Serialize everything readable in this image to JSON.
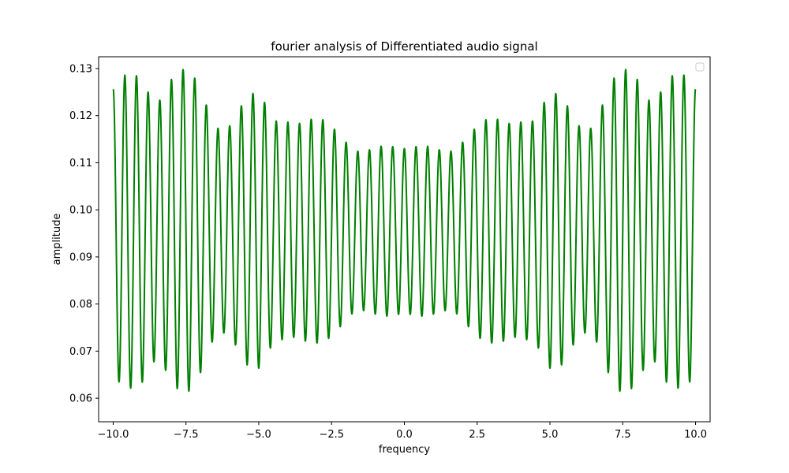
{
  "chart_data": {
    "type": "line",
    "title": "fourier analysis of Differentiated audio signal",
    "xlabel": "frequency",
    "ylabel": "amplitude",
    "xlim": [
      -10.5,
      10.5
    ],
    "ylim": [
      0.055,
      0.1325
    ],
    "xticks": [
      -10.0,
      -7.5,
      -5.0,
      -2.5,
      0.0,
      2.5,
      5.0,
      7.5,
      10.0
    ],
    "xtick_labels": [
      "−10.0",
      "−7.5",
      "−5.0",
      "−2.5",
      "0.0",
      "2.5",
      "5.0",
      "7.5",
      "10.0"
    ],
    "yticks": [
      0.06,
      0.07,
      0.08,
      0.09,
      0.1,
      0.11,
      0.12,
      0.13
    ],
    "ytick_labels": [
      "0.06",
      "0.07",
      "0.08",
      "0.09",
      "0.10",
      "0.11",
      "0.12",
      "0.13"
    ],
    "legend": "top-right (empty)",
    "series": [
      {
        "name": "",
        "color": "#008000",
        "x_range": [
          -10.0,
          10.0
        ],
        "oscillation_period": 0.4,
        "baseline": 0.0955,
        "envelope_x": [
          0,
          0.5,
          1.0,
          1.5,
          2.0,
          2.5,
          3.0,
          3.5,
          4.0,
          4.5,
          5.0,
          5.5,
          6.0,
          6.5,
          7.0,
          7.5,
          8.0,
          8.5,
          9.0,
          9.5,
          10.0
        ],
        "envelope_amp": [
          0.0175,
          0.0175,
          0.0178,
          0.0185,
          0.0195,
          0.02,
          0.022,
          0.025,
          0.026,
          0.023,
          0.026,
          0.027,
          0.025,
          0.024,
          0.028,
          0.031,
          0.033,
          0.031,
          0.033,
          0.03,
          0.028
        ]
      }
    ]
  }
}
